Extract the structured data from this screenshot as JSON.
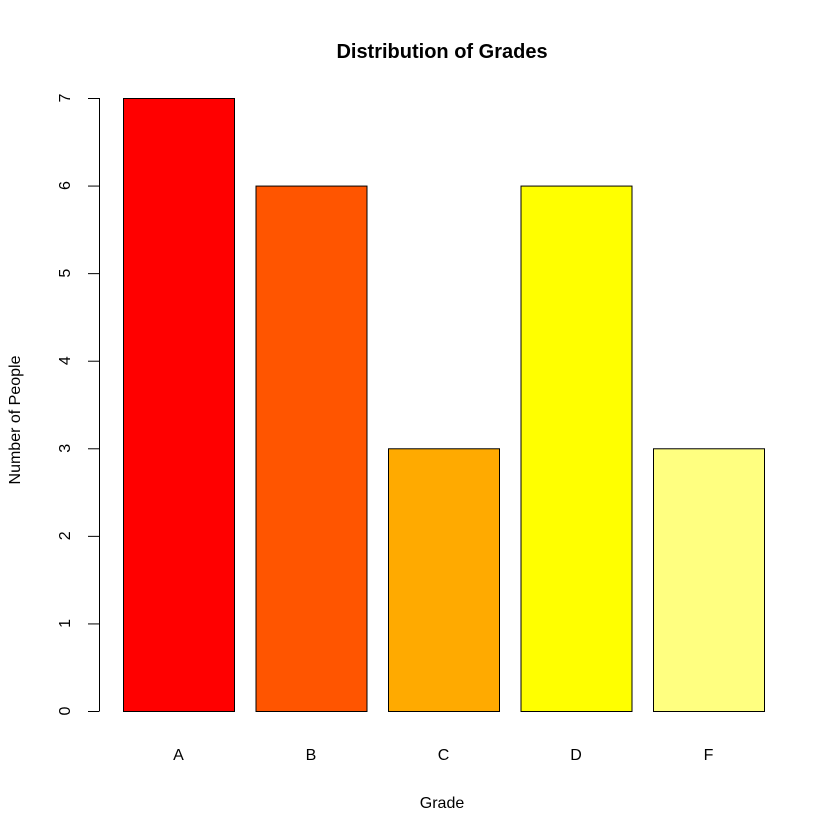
{
  "chart_data": {
    "type": "bar",
    "title": "Distribution of Grades",
    "xlabel": "Grade",
    "ylabel": "Number of People",
    "categories": [
      "A",
      "B",
      "C",
      "D",
      "F"
    ],
    "values": [
      7,
      6,
      3,
      6,
      3
    ],
    "colors": [
      "#FF0000",
      "#FF5500",
      "#FFAA00",
      "#FFFF00",
      "#FFFF80"
    ],
    "ylim": [
      0,
      7
    ],
    "yticks": [
      0,
      1,
      2,
      3,
      4,
      5,
      6,
      7
    ],
    "grid": false,
    "legend": "none"
  }
}
